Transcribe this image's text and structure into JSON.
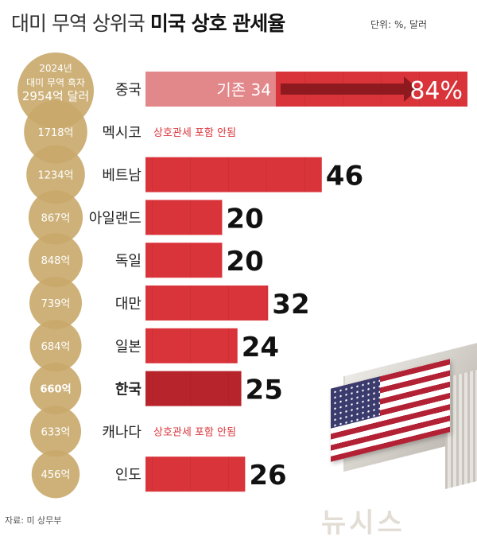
{
  "header": {
    "title_normal": "대미 무역 상위국",
    "title_bold": "미국 상호 관세율",
    "unit": "단위: %, 달러"
  },
  "source": "자료: 미 상무부",
  "watermark": "뉴시스",
  "colors": {
    "bar": "#d9343a",
    "bar_highlight": "#b8242b",
    "bar_existing": "#e2878a",
    "circle": "#c9a96a",
    "no_tariff_text": "#d9343a"
  },
  "chart_data": {
    "type": "bar",
    "orientation": "horizontal",
    "title": "대미 무역 상위국 미국 상호 관세율",
    "unit": "단위: %, 달러",
    "xlim": [
      0,
      84
    ],
    "legend_circle_label": [
      "2024년",
      "대미 무역 흑자",
      "2954억 달러"
    ],
    "countries": [
      {
        "name": "중국",
        "surplus": "2954억 달러",
        "tariff": 84,
        "existing": 34,
        "existing_label": "기존 34",
        "value_label": "84%",
        "bold": false,
        "highlight": false
      },
      {
        "name": "멕시코",
        "surplus": "1718억",
        "tariff": null,
        "note": "상호관세 포함 안됨",
        "bold": false,
        "highlight": false
      },
      {
        "name": "베트남",
        "surplus": "1234억",
        "tariff": 46,
        "value_label": "46",
        "bold": false,
        "highlight": false
      },
      {
        "name": "아일랜드",
        "surplus": "867억",
        "tariff": 20,
        "value_label": "20",
        "bold": false,
        "highlight": false
      },
      {
        "name": "독일",
        "surplus": "848억",
        "tariff": 20,
        "value_label": "20",
        "bold": false,
        "highlight": false
      },
      {
        "name": "대만",
        "surplus": "739억",
        "tariff": 32,
        "value_label": "32",
        "bold": false,
        "highlight": false
      },
      {
        "name": "일본",
        "surplus": "684억",
        "tariff": 24,
        "value_label": "24",
        "bold": false,
        "highlight": false
      },
      {
        "name": "한국",
        "surplus": "660억",
        "tariff": 25,
        "value_label": "25",
        "bold": true,
        "highlight": true
      },
      {
        "name": "캐나다",
        "surplus": "633억",
        "tariff": null,
        "note": "상호관세 포함 안됨",
        "bold": false,
        "highlight": false
      },
      {
        "name": "인도",
        "surplus": "456억",
        "tariff": 26,
        "value_label": "26",
        "bold": false,
        "highlight": false
      }
    ],
    "surplus_values": [
      2954,
      1718,
      1234,
      867,
      848,
      739,
      684,
      660,
      633,
      456
    ]
  }
}
